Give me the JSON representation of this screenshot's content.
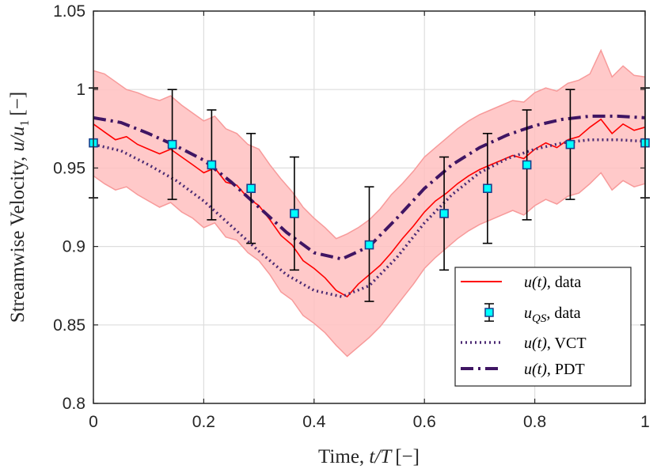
{
  "chart_data": {
    "type": "line",
    "xlabel_prefix": "Time, ",
    "xlabel_math": "t/T",
    "xlabel_unit": "[−]",
    "ylabel_prefix": "Streamwise Velocity, ",
    "ylabel_math": "u/u",
    "ylabel_sub": "1",
    "ylabel_unit": "[−]",
    "xlim": [
      0,
      1
    ],
    "ylim": [
      0.8,
      1.05
    ],
    "xticks": [
      0,
      0.2,
      0.4,
      0.6,
      0.8,
      1
    ],
    "xtick_labels": [
      "0",
      "0.2",
      "0.4",
      "0.6",
      "0.8",
      "1"
    ],
    "yticks": [
      0.8,
      0.85,
      0.9,
      0.95,
      1,
      1.05
    ],
    "ytick_labels": [
      "0.8",
      "0.85",
      "0.9",
      "0.95",
      "1",
      "1.05"
    ],
    "grid": true,
    "legend_position": "bottom-right",
    "legend": [
      {
        "math": "u(t)",
        "suffix": ", data"
      },
      {
        "math": "u",
        "sub": "QS",
        "suffix": ", data"
      },
      {
        "math": "u(t)",
        "suffix": ", VCT"
      },
      {
        "math": "u(t)",
        "suffix": ", PDT"
      }
    ],
    "colors": {
      "data_line": "#ff0000",
      "band_fill": "#ffc0c0",
      "band_edge": "#f79a9a",
      "marker_fill": "#00ffff",
      "marker_edge": "#1a3d8c",
      "errorbar": "#000000",
      "vct": "#4b2a73",
      "pdt": "#3f1563",
      "grid": "#dedede",
      "axis": "#262626"
    },
    "series": [
      {
        "name": "u(t), data",
        "style": "solid",
        "x": [
          0,
          0.02,
          0.04,
          0.06,
          0.08,
          0.1,
          0.12,
          0.14,
          0.16,
          0.18,
          0.2,
          0.22,
          0.24,
          0.26,
          0.28,
          0.3,
          0.32,
          0.34,
          0.36,
          0.38,
          0.4,
          0.42,
          0.44,
          0.46,
          0.48,
          0.5,
          0.52,
          0.54,
          0.56,
          0.58,
          0.6,
          0.62,
          0.64,
          0.66,
          0.68,
          0.7,
          0.72,
          0.74,
          0.76,
          0.78,
          0.8,
          0.82,
          0.84,
          0.86,
          0.88,
          0.9,
          0.92,
          0.94,
          0.96,
          0.98,
          1
        ],
        "y": [
          0.978,
          0.973,
          0.968,
          0.97,
          0.965,
          0.962,
          0.959,
          0.962,
          0.957,
          0.952,
          0.947,
          0.95,
          0.941,
          0.939,
          0.931,
          0.926,
          0.917,
          0.907,
          0.901,
          0.891,
          0.886,
          0.88,
          0.872,
          0.868,
          0.876,
          0.882,
          0.888,
          0.896,
          0.905,
          0.913,
          0.922,
          0.929,
          0.934,
          0.94,
          0.945,
          0.949,
          0.952,
          0.955,
          0.958,
          0.956,
          0.962,
          0.966,
          0.963,
          0.968,
          0.97,
          0.976,
          0.981,
          0.972,
          0.978,
          0.974,
          0.976
        ]
      },
      {
        "name": "u(t) band upper",
        "style": "band_upper",
        "x": [
          0,
          0.02,
          0.04,
          0.06,
          0.08,
          0.1,
          0.12,
          0.14,
          0.16,
          0.18,
          0.2,
          0.22,
          0.24,
          0.26,
          0.28,
          0.3,
          0.32,
          0.34,
          0.36,
          0.38,
          0.4,
          0.42,
          0.44,
          0.46,
          0.48,
          0.5,
          0.52,
          0.54,
          0.56,
          0.58,
          0.6,
          0.62,
          0.64,
          0.66,
          0.68,
          0.7,
          0.72,
          0.74,
          0.76,
          0.78,
          0.8,
          0.82,
          0.84,
          0.86,
          0.88,
          0.9,
          0.92,
          0.94,
          0.96,
          0.98,
          1
        ],
        "y": [
          1.012,
          1.01,
          1.005,
          1.0,
          0.998,
          0.995,
          0.993,
          0.996,
          0.99,
          0.985,
          0.98,
          0.983,
          0.975,
          0.972,
          0.965,
          0.962,
          0.952,
          0.943,
          0.935,
          0.925,
          0.918,
          0.912,
          0.905,
          0.908,
          0.912,
          0.917,
          0.924,
          0.933,
          0.94,
          0.948,
          0.957,
          0.963,
          0.969,
          0.975,
          0.98,
          0.984,
          0.987,
          0.99,
          0.993,
          0.992,
          0.998,
          1.001,
          0.999,
          1.004,
          1.006,
          1.01,
          1.025,
          1.008,
          1.015,
          1.009,
          1.008
        ]
      },
      {
        "name": "u(t) band lower",
        "style": "band_lower",
        "x": [
          0,
          0.02,
          0.04,
          0.06,
          0.08,
          0.1,
          0.12,
          0.14,
          0.16,
          0.18,
          0.2,
          0.22,
          0.24,
          0.26,
          0.28,
          0.3,
          0.32,
          0.34,
          0.36,
          0.38,
          0.4,
          0.42,
          0.44,
          0.46,
          0.48,
          0.5,
          0.52,
          0.54,
          0.56,
          0.58,
          0.6,
          0.62,
          0.64,
          0.66,
          0.68,
          0.7,
          0.72,
          0.74,
          0.76,
          0.78,
          0.8,
          0.82,
          0.84,
          0.86,
          0.88,
          0.9,
          0.92,
          0.94,
          0.96,
          0.98,
          1
        ],
        "y": [
          0.945,
          0.94,
          0.936,
          0.938,
          0.933,
          0.929,
          0.925,
          0.928,
          0.922,
          0.918,
          0.912,
          0.915,
          0.906,
          0.904,
          0.896,
          0.891,
          0.882,
          0.871,
          0.866,
          0.856,
          0.851,
          0.845,
          0.837,
          0.83,
          0.836,
          0.842,
          0.849,
          0.858,
          0.867,
          0.876,
          0.886,
          0.893,
          0.899,
          0.905,
          0.91,
          0.914,
          0.917,
          0.92,
          0.923,
          0.92,
          0.926,
          0.93,
          0.927,
          0.932,
          0.934,
          0.94,
          0.947,
          0.936,
          0.942,
          0.938,
          0.94
        ]
      },
      {
        "name": "u(t), VCT",
        "style": "dotted",
        "x": [
          0,
          0.05,
          0.1,
          0.15,
          0.2,
          0.25,
          0.3,
          0.35,
          0.4,
          0.45,
          0.5,
          0.55,
          0.6,
          0.65,
          0.7,
          0.75,
          0.8,
          0.85,
          0.9,
          0.95,
          1
        ],
        "y": [
          0.965,
          0.961,
          0.952,
          0.942,
          0.929,
          0.913,
          0.897,
          0.882,
          0.872,
          0.868,
          0.875,
          0.893,
          0.915,
          0.933,
          0.947,
          0.956,
          0.962,
          0.966,
          0.968,
          0.968,
          0.967
        ]
      },
      {
        "name": "u(t), PDT",
        "style": "dashdot",
        "x": [
          0,
          0.05,
          0.1,
          0.15,
          0.2,
          0.25,
          0.3,
          0.35,
          0.4,
          0.45,
          0.5,
          0.55,
          0.6,
          0.65,
          0.7,
          0.75,
          0.8,
          0.85,
          0.9,
          0.95,
          1
        ],
        "y": [
          0.982,
          0.979,
          0.972,
          0.964,
          0.955,
          0.941,
          0.925,
          0.909,
          0.896,
          0.892,
          0.9,
          0.918,
          0.937,
          0.952,
          0.963,
          0.971,
          0.977,
          0.981,
          0.983,
          0.983,
          0.982
        ]
      }
    ],
    "markers": {
      "name": "u_QS, data",
      "x": [
        0,
        0.1429,
        0.2143,
        0.2857,
        0.3643,
        0.5,
        0.6357,
        0.7143,
        0.7857,
        0.8643,
        1
      ],
      "y": [
        0.966,
        0.965,
        0.952,
        0.937,
        0.921,
        0.901,
        0.921,
        0.937,
        0.952,
        0.965,
        0.966
      ],
      "err_low": [
        0.931,
        0.93,
        0.917,
        0.902,
        0.885,
        0.865,
        0.885,
        0.902,
        0.917,
        0.93,
        0.931
      ],
      "err_high": [
        1.001,
        1.0,
        0.987,
        0.972,
        0.957,
        0.938,
        0.957,
        0.972,
        0.987,
        1.0,
        1.001
      ]
    }
  }
}
